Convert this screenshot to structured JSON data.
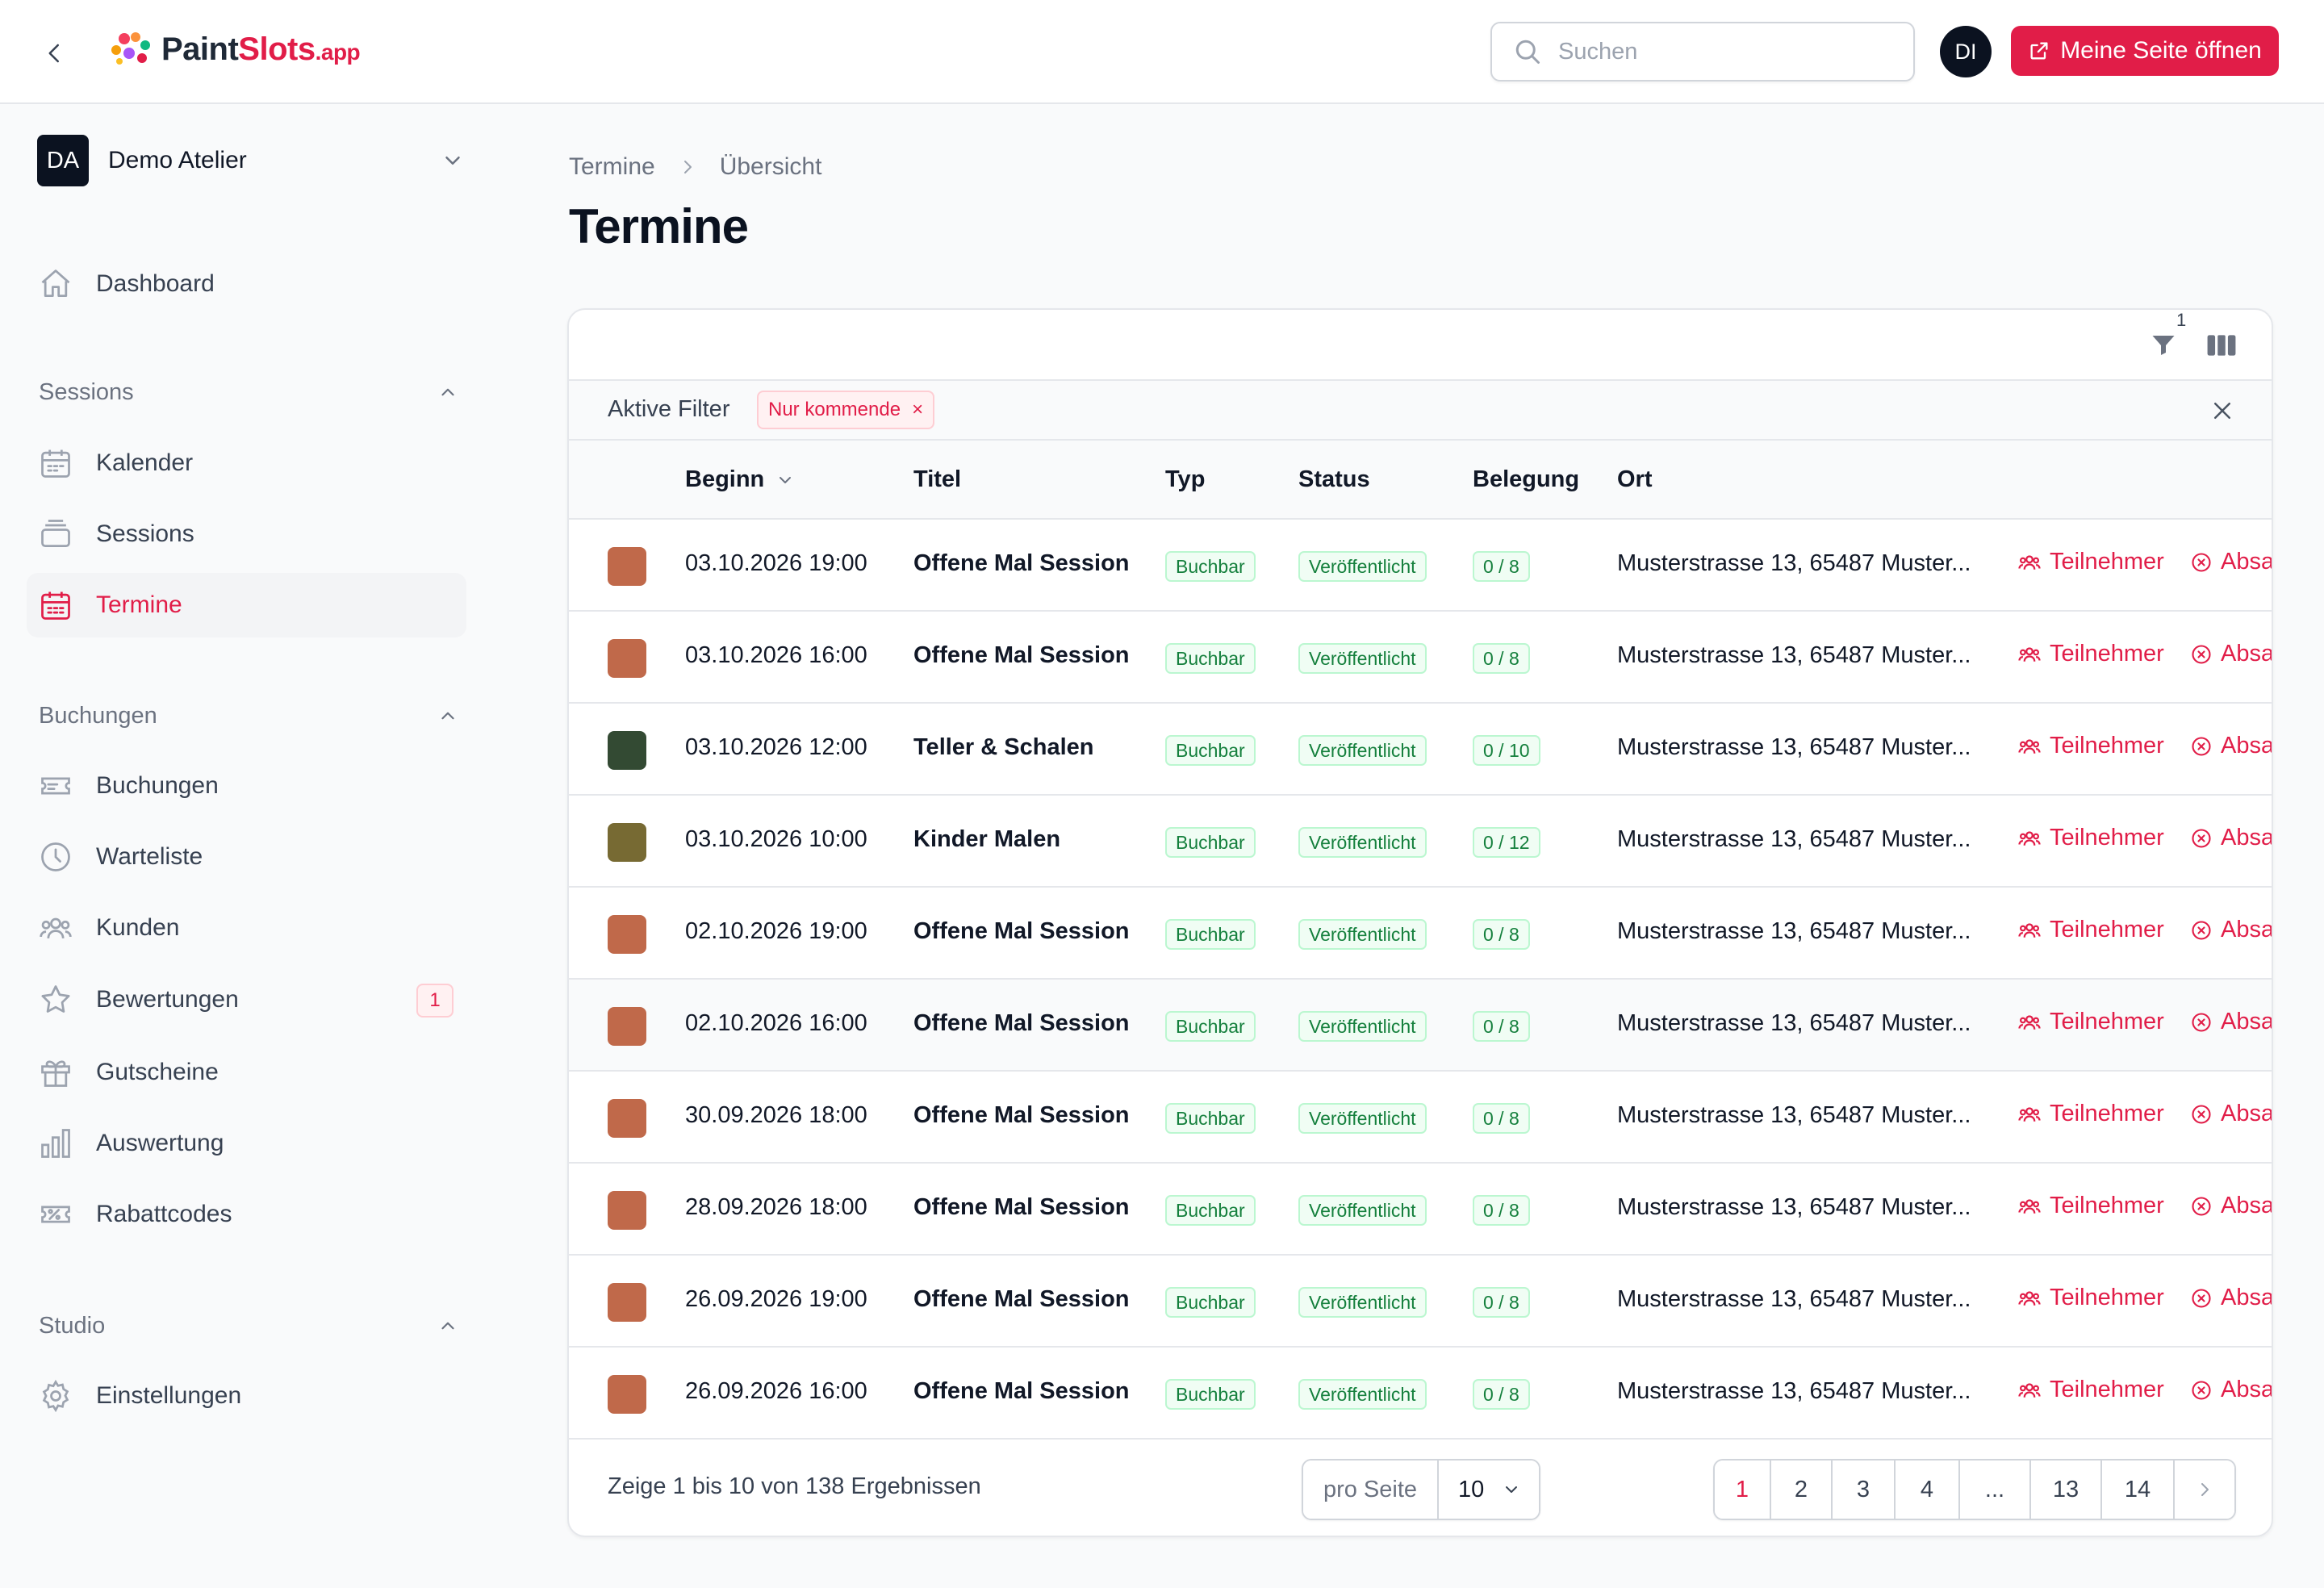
{
  "header": {
    "logo": {
      "part1": "Paint",
      "part2": "Slots",
      "part3": ".app"
    },
    "search_placeholder": "Suchen",
    "user_initials": "DI",
    "open_page_label": "Meine Seite öffnen"
  },
  "sidebar": {
    "tenant": {
      "initials": "DA",
      "name": "Demo Atelier"
    },
    "dashboard": "Dashboard",
    "sections": {
      "sessions": {
        "title": "Sessions",
        "items": [
          "Kalender",
          "Sessions",
          "Termine"
        ]
      },
      "buchungen": {
        "title": "Buchungen",
        "items": [
          "Buchungen",
          "Warteliste",
          "Kunden",
          "Bewertungen",
          "Gutscheine",
          "Auswertung",
          "Rabattcodes"
        ]
      },
      "studio": {
        "title": "Studio",
        "items": [
          "Einstellungen"
        ]
      }
    },
    "active_item": "Termine",
    "bewertungen_badge": "1"
  },
  "main": {
    "breadcrumb": [
      "Termine",
      "Übersicht"
    ],
    "title": "Termine",
    "filter_count": "1",
    "active_filters_label": "Aktive Filter",
    "active_filter_chip": "Nur kommende",
    "columns": {
      "beginn": "Beginn",
      "titel": "Titel",
      "typ": "Typ",
      "status": "Status",
      "belegung": "Belegung",
      "ort": "Ort"
    },
    "action_teilnehmer": "Teilnehmer",
    "action_absagen": "Absa",
    "rows": [
      {
        "color": "#c0694a",
        "beginn": "03.10.2026 19:00",
        "titel": "Offene Mal Session",
        "typ": "Buchbar",
        "status": "Veröffentlicht",
        "belegung": "0 / 8",
        "ort": "Musterstrasse 13, 65487 Muster..."
      },
      {
        "color": "#c0694a",
        "beginn": "03.10.2026 16:00",
        "titel": "Offene Mal Session",
        "typ": "Buchbar",
        "status": "Veröffentlicht",
        "belegung": "0 / 8",
        "ort": "Musterstrasse 13, 65487 Muster..."
      },
      {
        "color": "#334a33",
        "beginn": "03.10.2026 12:00",
        "titel": "Teller & Schalen",
        "typ": "Buchbar",
        "status": "Veröffentlicht",
        "belegung": "0 / 10",
        "ort": "Musterstrasse 13, 65487 Muster..."
      },
      {
        "color": "#776a33",
        "beginn": "03.10.2026 10:00",
        "titel": "Kinder Malen",
        "typ": "Buchbar",
        "status": "Veröffentlicht",
        "belegung": "0 / 12",
        "ort": "Musterstrasse 13, 65487 Muster..."
      },
      {
        "color": "#c0694a",
        "beginn": "02.10.2026 19:00",
        "titel": "Offene Mal Session",
        "typ": "Buchbar",
        "status": "Veröffentlicht",
        "belegung": "0 / 8",
        "ort": "Musterstrasse 13, 65487 Muster..."
      },
      {
        "color": "#c0694a",
        "beginn": "02.10.2026 16:00",
        "titel": "Offene Mal Session",
        "typ": "Buchbar",
        "status": "Veröffentlicht",
        "belegung": "0 / 8",
        "ort": "Musterstrasse 13, 65487 Muster..."
      },
      {
        "color": "#c0694a",
        "beginn": "30.09.2026 18:00",
        "titel": "Offene Mal Session",
        "typ": "Buchbar",
        "status": "Veröffentlicht",
        "belegung": "0 / 8",
        "ort": "Musterstrasse 13, 65487 Muster..."
      },
      {
        "color": "#c0694a",
        "beginn": "28.09.2026 18:00",
        "titel": "Offene Mal Session",
        "typ": "Buchbar",
        "status": "Veröffentlicht",
        "belegung": "0 / 8",
        "ort": "Musterstrasse 13, 65487 Muster..."
      },
      {
        "color": "#c0694a",
        "beginn": "26.09.2026 19:00",
        "titel": "Offene Mal Session",
        "typ": "Buchbar",
        "status": "Veröffentlicht",
        "belegung": "0 / 8",
        "ort": "Musterstrasse 13, 65487 Muster..."
      },
      {
        "color": "#c0694a",
        "beginn": "26.09.2026 16:00",
        "titel": "Offene Mal Session",
        "typ": "Buchbar",
        "status": "Veröffentlicht",
        "belegung": "0 / 8",
        "ort": "Musterstrasse 13, 65487 Muster..."
      }
    ],
    "pagination": {
      "summary": "Zeige 1 bis 10 von 138 Ergebnissen",
      "per_page_label": "pro Seite",
      "per_page_value": "10",
      "pages": [
        "1",
        "2",
        "3",
        "4",
        "...",
        "13",
        "14"
      ],
      "current_page": "1"
    }
  },
  "colors": {
    "accent": "#e11d48",
    "success": "#15803d",
    "dark": "#0b1220"
  }
}
